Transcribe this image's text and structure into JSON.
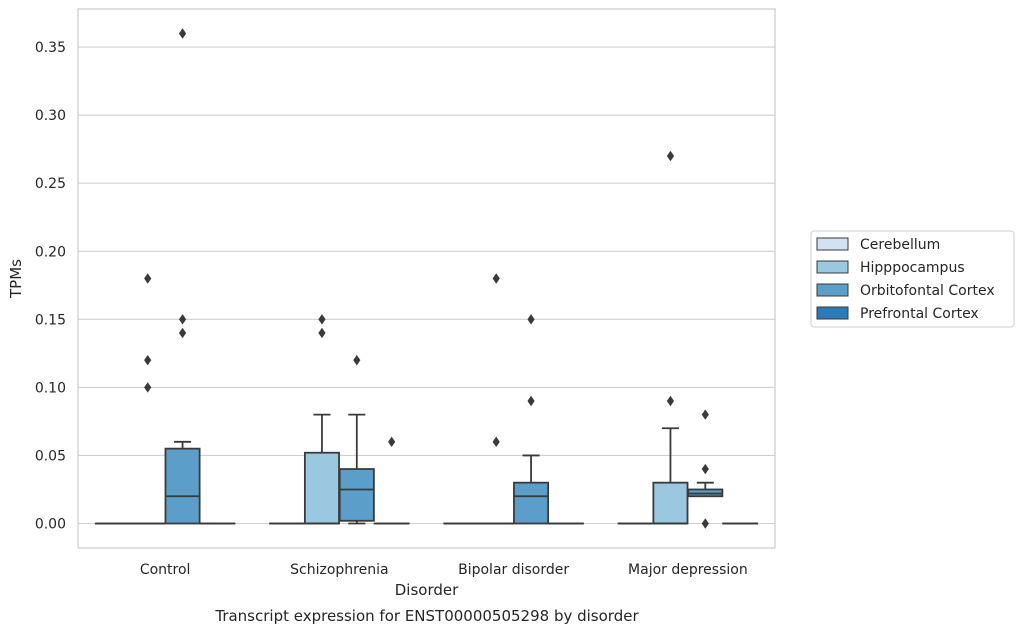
{
  "caption": "Transcript expression for ENST00000505298 by disorder",
  "chart_data": {
    "type": "boxplot",
    "title": "",
    "xlabel": "Disorder",
    "ylabel": "TPMs",
    "ylim": [
      -0.018,
      0.378
    ],
    "yticks": [
      0.0,
      0.05,
      0.1,
      0.15,
      0.2,
      0.25,
      0.3,
      0.35
    ],
    "ytick_labels": [
      "0.00",
      "0.05",
      "0.10",
      "0.15",
      "0.20",
      "0.25",
      "0.30",
      "0.35"
    ],
    "grid": "horizontal",
    "legend_position": "right",
    "categories": [
      "Control",
      "Schizophrenia",
      "Bipolar disorder",
      "Major depression"
    ],
    "series": [
      {
        "name": "Cerebellum",
        "color": "#d2e2f0",
        "boxes": [
          {
            "q1": 0,
            "median": 0,
            "q3": 0,
            "whisker_low": 0,
            "whisker_high": 0,
            "outliers": []
          },
          {
            "q1": 0,
            "median": 0,
            "q3": 0,
            "whisker_low": 0,
            "whisker_high": 0,
            "outliers": []
          },
          {
            "q1": 0,
            "median": 0,
            "q3": 0,
            "whisker_low": 0,
            "whisker_high": 0,
            "outliers": []
          },
          {
            "q1": 0,
            "median": 0,
            "q3": 0,
            "whisker_low": 0,
            "whisker_high": 0,
            "outliers": []
          }
        ]
      },
      {
        "name": "Hipppocampus",
        "color": "#9ac8e0",
        "boxes": [
          {
            "q1": 0,
            "median": 0,
            "q3": 0,
            "whisker_low": 0,
            "whisker_high": 0,
            "outliers": []
          },
          {
            "q1": 0,
            "median": 0,
            "q3": 0.052,
            "whisker_low": 0,
            "whisker_high": 0.08,
            "outliers": [
              0.14,
              0.15
            ]
          },
          {
            "q1": 0,
            "median": 0,
            "q3": 0,
            "whisker_low": 0,
            "whisker_high": 0,
            "outliers": []
          },
          {
            "q1": 0,
            "median": 0,
            "q3": 0.03,
            "whisker_low": 0,
            "whisker_high": 0.07,
            "outliers": [
              0.09,
              0.27
            ]
          }
        ]
      },
      {
        "name": "Orbitofontal Cortex",
        "color": "#5b9ec9",
        "boxes": [
          {
            "q1": 0,
            "median": 0.02,
            "q3": 0.055,
            "whisker_low": 0,
            "whisker_high": 0.06,
            "outliers": [
              0.14,
              0.15,
              0.36
            ]
          },
          {
            "q1": 0.002,
            "median": 0.025,
            "q3": 0.04,
            "whisker_low": 0,
            "whisker_high": 0.08,
            "outliers": [
              0.12
            ]
          },
          {
            "q1": 0,
            "median": 0.02,
            "q3": 0.03,
            "whisker_low": 0,
            "whisker_high": 0.05,
            "outliers": [
              0.09,
              0.15
            ]
          },
          {
            "q1": 0.02,
            "median": 0.022,
            "q3": 0.025,
            "whisker_low": 0.02,
            "whisker_high": 0.03,
            "outliers": [
              0.0,
              0.04,
              0.08
            ]
          }
        ]
      },
      {
        "name": "Prefrontal Cortex",
        "color": "#2c7bb6",
        "boxes": [
          {
            "q1": 0,
            "median": 0,
            "q3": 0,
            "whisker_low": 0,
            "whisker_high": 0,
            "outliers": []
          },
          {
            "q1": 0,
            "median": 0,
            "q3": 0,
            "whisker_low": 0,
            "whisker_high": 0,
            "outliers": [
              0.06
            ]
          },
          {
            "q1": 0,
            "median": 0,
            "q3": 0,
            "whisker_low": 0,
            "whisker_high": 0,
            "outliers": []
          },
          {
            "q1": 0,
            "median": 0,
            "q3": 0,
            "whisker_low": 0,
            "whisker_high": 0,
            "outliers": []
          }
        ]
      }
    ],
    "extra_outliers_between_groups": [
      {
        "category": "Control",
        "offset_series": "Hipppocampus",
        "values": [
          0.1,
          0.12,
          0.18
        ]
      },
      {
        "category": "Bipolar disorder",
        "offset_series": "Hipppocampus",
        "values": [
          0.06,
          0.18
        ]
      }
    ]
  }
}
